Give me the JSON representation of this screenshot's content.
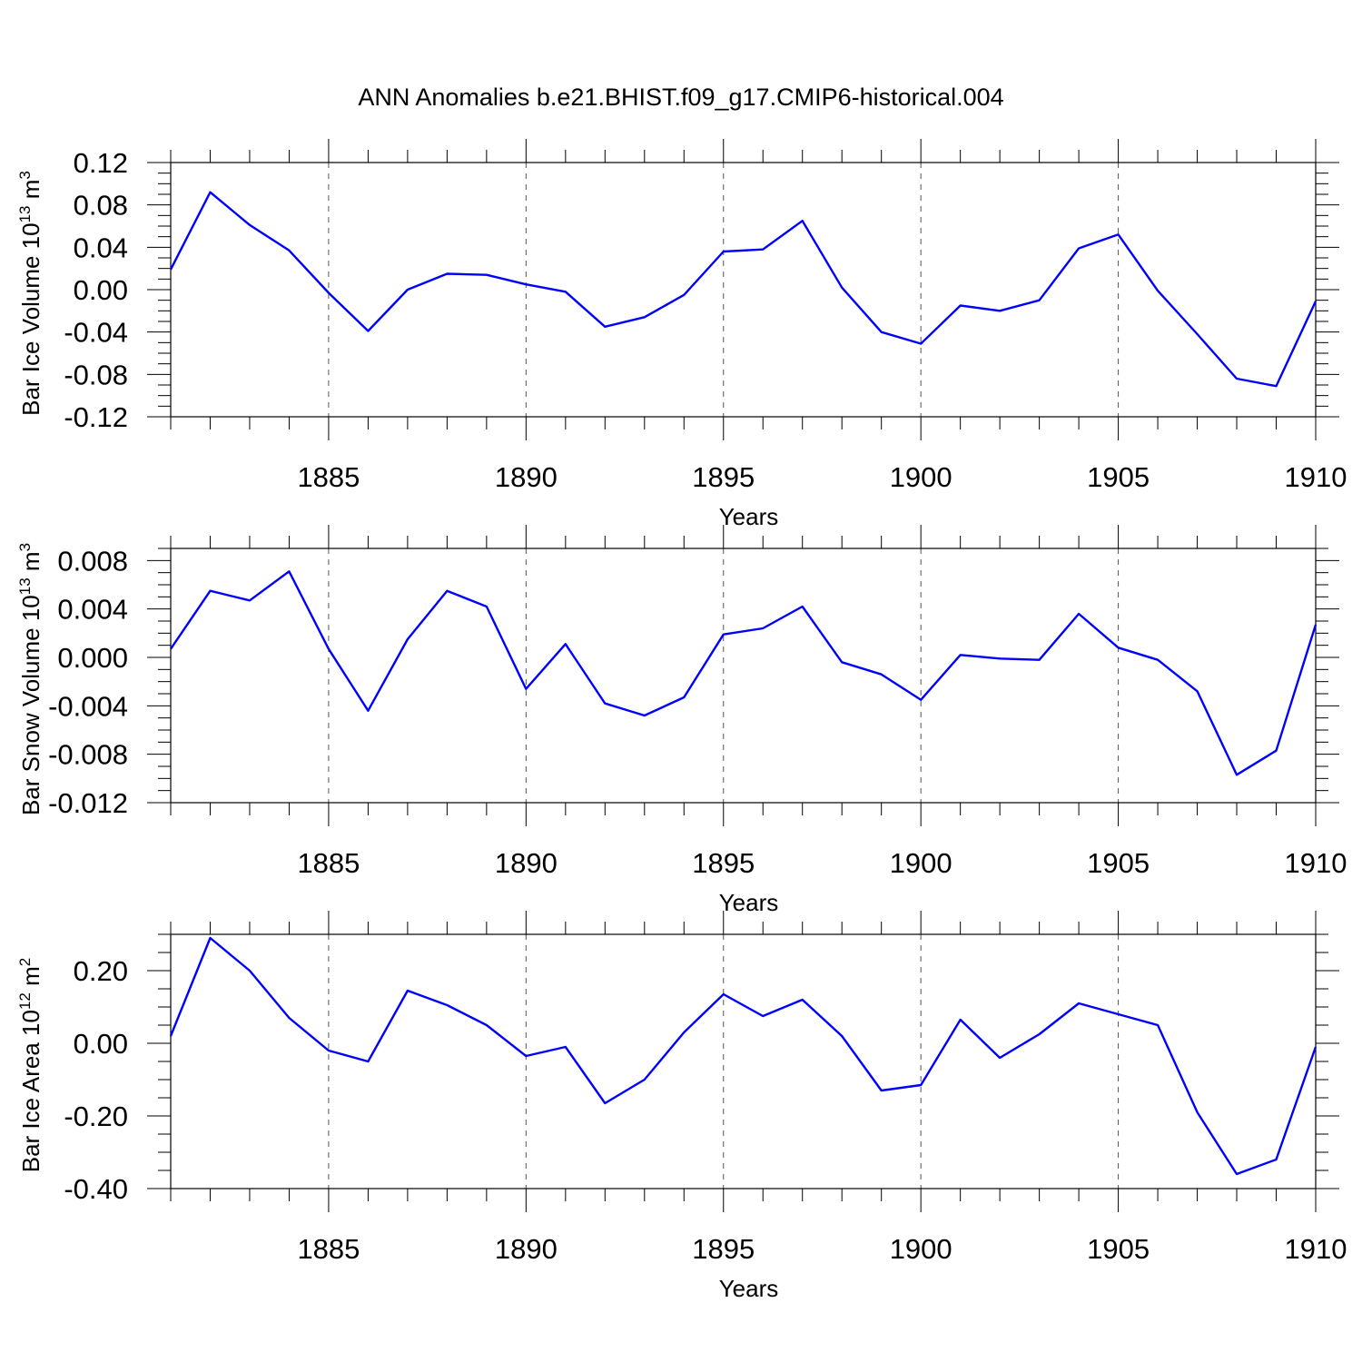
{
  "figure": {
    "title": "ANN Anomalies b.e21.BHIST.f09_g17.CMIP6-historical.004",
    "line_color": "#0000ff"
  },
  "chart_data": [
    {
      "type": "line",
      "xlabel": "Years",
      "ylabel_base": "Bar Ice Volume 10",
      "ylabel_exp": "13",
      "ylabel_unit": " m",
      "ylabel_unit_exp": "3",
      "xlim": [
        1881,
        1910
      ],
      "ylim": [
        -0.12,
        0.12
      ],
      "xticks": [
        1885,
        1890,
        1895,
        1900,
        1905,
        1910
      ],
      "yticks": [
        -0.12,
        -0.08,
        -0.04,
        0.0,
        0.04,
        0.08,
        0.12
      ],
      "ytick_labels": [
        "-0.12",
        "-0.08",
        "-0.04",
        "0.00",
        "0.04",
        "0.08",
        "0.12"
      ],
      "grid": "dashed vertical at major x ticks",
      "x": [
        1881,
        1882,
        1883,
        1884,
        1885,
        1886,
        1887,
        1888,
        1889,
        1890,
        1891,
        1892,
        1893,
        1894,
        1895,
        1896,
        1897,
        1898,
        1899,
        1900,
        1901,
        1902,
        1903,
        1904,
        1905,
        1906,
        1907,
        1908,
        1909,
        1910
      ],
      "series": [
        {
          "values": [
            0.019,
            0.092,
            0.061,
            0.037,
            -0.003,
            -0.039,
            0.0,
            0.015,
            0.014,
            0.005,
            -0.002,
            -0.035,
            -0.026,
            -0.005,
            0.036,
            0.038,
            0.065,
            0.002,
            -0.04,
            -0.051,
            -0.015,
            -0.02,
            -0.01,
            0.039,
            0.052,
            -0.001,
            -0.042,
            -0.084,
            -0.091,
            -0.011
          ]
        }
      ]
    },
    {
      "type": "line",
      "xlabel": "Years",
      "ylabel_base": "Bar Snow Volume 10",
      "ylabel_exp": "13",
      "ylabel_unit": " m",
      "ylabel_unit_exp": "3",
      "xlim": [
        1881,
        1910
      ],
      "ylim": [
        -0.012,
        0.009
      ],
      "xticks": [
        1885,
        1890,
        1895,
        1900,
        1905,
        1910
      ],
      "yticks": [
        -0.012,
        -0.008,
        -0.004,
        0.0,
        0.004,
        0.008
      ],
      "ytick_labels": [
        "-0.012",
        "-0.008",
        "-0.004",
        "0.000",
        "0.004",
        "0.008"
      ],
      "grid": "dashed vertical at major x ticks",
      "x": [
        1881,
        1882,
        1883,
        1884,
        1885,
        1886,
        1887,
        1888,
        1889,
        1890,
        1891,
        1892,
        1893,
        1894,
        1895,
        1896,
        1897,
        1898,
        1899,
        1900,
        1901,
        1902,
        1903,
        1904,
        1905,
        1906,
        1907,
        1908,
        1909,
        1910
      ],
      "series": [
        {
          "values": [
            0.0007,
            0.0055,
            0.0047,
            0.0071,
            0.0007,
            -0.0044,
            0.0015,
            0.0055,
            0.0042,
            -0.0026,
            0.0011,
            -0.0038,
            -0.0048,
            -0.0033,
            0.0019,
            0.0024,
            0.0042,
            -0.0004,
            -0.0014,
            -0.0035,
            0.0002,
            -0.0001,
            -0.0002,
            0.0036,
            0.0008,
            -0.0002,
            -0.0028,
            -0.0097,
            -0.0077,
            0.0027
          ]
        }
      ]
    },
    {
      "type": "line",
      "xlabel": "Years",
      "ylabel_base": "Bar Ice Area 10",
      "ylabel_exp": "12",
      "ylabel_unit": " m",
      "ylabel_unit_exp": "2",
      "xlim": [
        1881,
        1910
      ],
      "ylim": [
        -0.4,
        0.3
      ],
      "xticks": [
        1885,
        1890,
        1895,
        1900,
        1905,
        1910
      ],
      "yticks": [
        -0.4,
        -0.2,
        0.0,
        0.2
      ],
      "ytick_labels": [
        "-0.40",
        "-0.20",
        "0.00",
        "0.20"
      ],
      "grid": "dashed vertical at major x ticks",
      "x": [
        1881,
        1882,
        1883,
        1884,
        1885,
        1886,
        1887,
        1888,
        1889,
        1890,
        1891,
        1892,
        1893,
        1894,
        1895,
        1896,
        1897,
        1898,
        1899,
        1900,
        1901,
        1902,
        1903,
        1904,
        1905,
        1906,
        1907,
        1908,
        1909,
        1910
      ],
      "series": [
        {
          "values": [
            0.02,
            0.29,
            0.2,
            0.07,
            -0.02,
            -0.05,
            0.145,
            0.105,
            0.05,
            -0.035,
            -0.01,
            -0.165,
            -0.1,
            0.03,
            0.135,
            0.075,
            0.12,
            0.02,
            -0.13,
            -0.115,
            0.065,
            -0.04,
            0.025,
            0.11,
            0.08,
            0.05,
            -0.19,
            -0.36,
            -0.32,
            -0.01
          ]
        }
      ]
    }
  ]
}
